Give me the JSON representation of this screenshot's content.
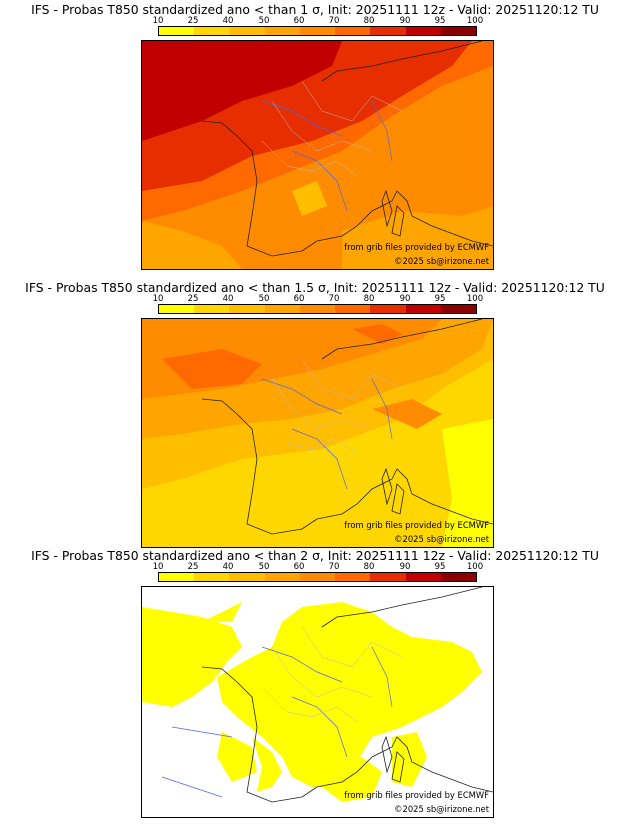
{
  "colorbar": {
    "ticks": [
      "10",
      "25",
      "40",
      "50",
      "60",
      "70",
      "80",
      "90",
      "95",
      "100"
    ],
    "colors": [
      "#ffff00",
      "#ffd700",
      "#ffbf00",
      "#ffa500",
      "#ff8c00",
      "#ff6a00",
      "#e62e00",
      "#c00000",
      "#8b0000"
    ]
  },
  "panels": [
    {
      "title": "IFS - Probas T850  standardized ano < than 1 σ, Init: 20251111 12z - Valid: 20251120:12 TU",
      "credit_source": "from grib files provided by ECMWF",
      "credit_copyright": "©2025 sb@irizone.net"
    },
    {
      "title": "IFS - Probas T850  standardized ano < than 1.5 σ, Init: 20251111 12z - Valid: 20251120:12 TU",
      "credit_source": "from grib files provided by ECMWF",
      "credit_copyright": "©2025 sb@irizone.net"
    },
    {
      "title": "IFS - Probas T850  standardized ano < than 2 σ, Init: 20251111 12z - Valid: 20251120:12 TU",
      "credit_source": "from grib files provided by ECMWF",
      "credit_copyright": "©2025 sb@irizone.net"
    }
  ]
}
